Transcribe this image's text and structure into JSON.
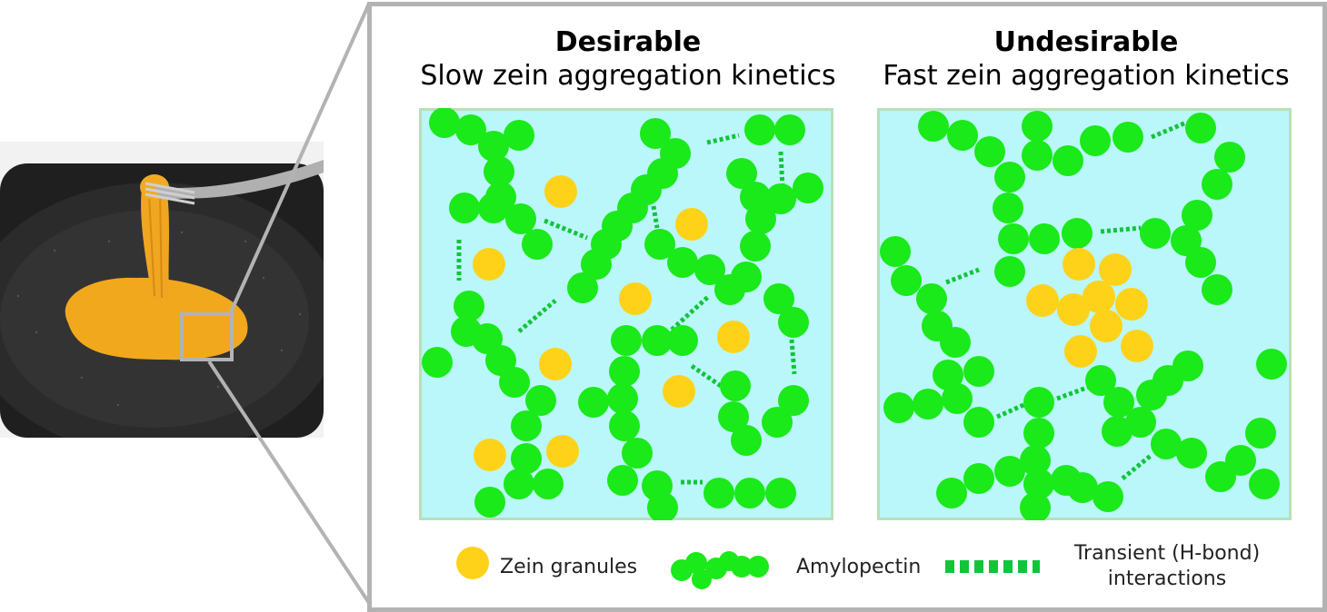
{
  "left_panel": {
    "title": "Desirable",
    "subtitle": "Slow zein aggregation kinetics"
  },
  "right_panel": {
    "title": "Undesirable",
    "subtitle": "Fast zein aggregation kinetics"
  },
  "legend": {
    "zein": "Zein granules",
    "amylopectin": "Amylopectin",
    "transient_line1": "Transient (H-bond)",
    "transient_line2": "interactions"
  },
  "colors": {
    "zein": "#ffd21a",
    "amylopectin": "#1ae91a",
    "bond": "#12c43a",
    "panel_bg": "#baf7fa",
    "panel_border": "#b8e0b8",
    "frame": "#b3b3b3"
  }
}
